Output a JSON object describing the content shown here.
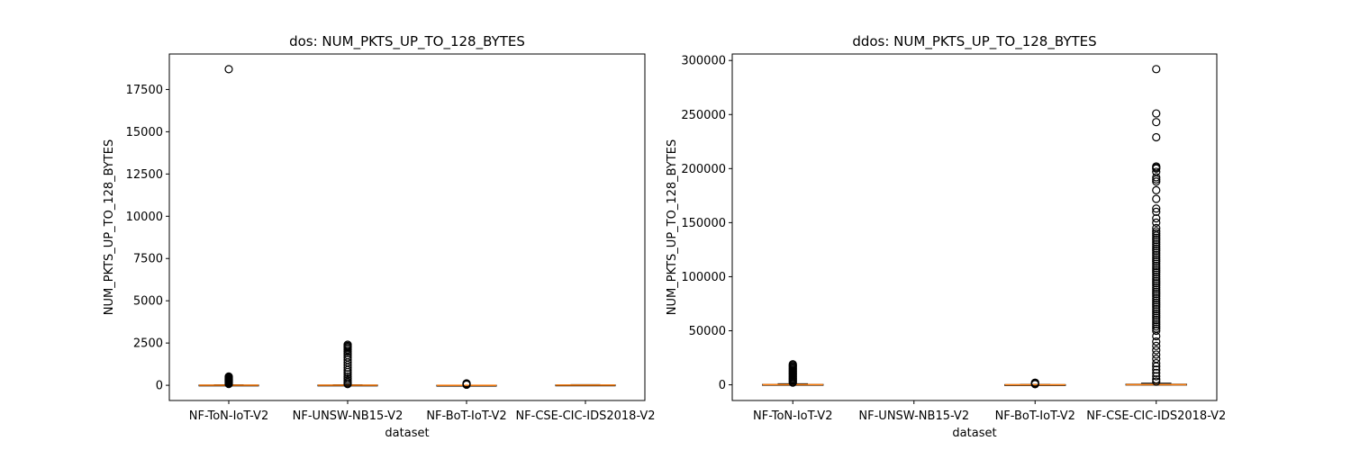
{
  "chart_data": [
    {
      "type": "box",
      "title": "dos: NUM_PKTS_UP_TO_128_BYTES",
      "xlabel": "dataset",
      "ylabel": "NUM_PKTS_UP_TO_128_BYTES",
      "categories": [
        "NF-ToN-IoT-V2",
        "NF-UNSW-NB15-V2",
        "NF-BoT-IoT-V2",
        "NF-CSE-CIC-IDS2018-V2"
      ],
      "ylim": [
        -900,
        19600
      ],
      "yticks": [
        0,
        2500,
        5000,
        7500,
        10000,
        12500,
        15000,
        17500
      ],
      "boxes": [
        {
          "q1": 3,
          "median": 8,
          "q3": 15,
          "whisker_low": 0,
          "whisker_high": 30,
          "outliers": [
            18700,
            520,
            480,
            440,
            410,
            380,
            350,
            320,
            290,
            260,
            230,
            200,
            170,
            140,
            110,
            80
          ]
        },
        {
          "q1": 3,
          "median": 8,
          "q3": 15,
          "whisker_low": 0,
          "whisker_high": 30,
          "outliers": [
            2400,
            2330,
            2260,
            2190,
            2100,
            2000,
            1900,
            1780,
            1650,
            1500,
            1350,
            1200,
            1050,
            900,
            780,
            650,
            520,
            400,
            300,
            200,
            120,
            70
          ]
        },
        {
          "q1": 0,
          "median": 1,
          "q3": 3,
          "whisker_low": 0,
          "whisker_high": 6,
          "outliers": [
            110,
            95,
            80,
            65,
            50,
            35
          ]
        },
        {
          "q1": 5,
          "median": 12,
          "q3": 20,
          "whisker_low": 0,
          "whisker_high": 40,
          "outliers": []
        }
      ]
    },
    {
      "type": "box",
      "title": "ddos: NUM_PKTS_UP_TO_128_BYTES",
      "xlabel": "dataset",
      "ylabel": "NUM_PKTS_UP_TO_128_BYTES",
      "categories": [
        "NF-ToN-IoT-V2",
        "NF-UNSW-NB15-V2",
        "NF-BoT-IoT-V2",
        "NF-CSE-CIC-IDS2018-V2"
      ],
      "ylim": [
        -14500,
        306000
      ],
      "yticks": [
        0,
        50000,
        100000,
        150000,
        200000,
        250000,
        300000
      ],
      "boxes": [
        {
          "q1": 50,
          "median": 150,
          "q3": 400,
          "whisker_low": 0,
          "whisker_high": 1000,
          "outliers": [
            19000,
            18000,
            17000,
            16000,
            15000,
            14000,
            13000,
            12000,
            11000,
            10000,
            9000,
            8000,
            7000,
            6000,
            5000,
            4000,
            3000,
            2000
          ]
        },
        null,
        {
          "q1": 20,
          "median": 80,
          "q3": 200,
          "whisker_low": 0,
          "whisker_high": 400,
          "outliers": [
            2000,
            1500,
            1000,
            600
          ]
        },
        {
          "q1": 50,
          "median": 200,
          "q3": 600,
          "whisker_low": 0,
          "whisker_high": 1500,
          "outliers": [
            292000,
            251000,
            243000,
            229000,
            202000,
            201000,
            200000,
            197000,
            192000,
            190000,
            188000,
            180000,
            172000,
            163000,
            160000,
            154000,
            150000,
            145000,
            142000,
            140000,
            138000,
            136000,
            134000,
            132000,
            130000,
            128000,
            126000,
            124000,
            122000,
            120000,
            118000,
            116000,
            114000,
            112000,
            110000,
            108000,
            106000,
            104000,
            102000,
            100000,
            98000,
            96000,
            94000,
            92000,
            90000,
            88000,
            86000,
            84000,
            82000,
            80000,
            78000,
            76000,
            74000,
            72000,
            70000,
            68000,
            66000,
            64000,
            62000,
            60000,
            58000,
            56000,
            54000,
            52000,
            50000,
            45000,
            40000,
            36000,
            32000,
            28000,
            24000,
            20000,
            17000,
            14000,
            11000,
            8000,
            5000,
            3000
          ]
        }
      ]
    }
  ],
  "colors": {
    "box_stroke": "#000000",
    "median": "#ff7f0e",
    "outlier_stroke": "#000000"
  }
}
